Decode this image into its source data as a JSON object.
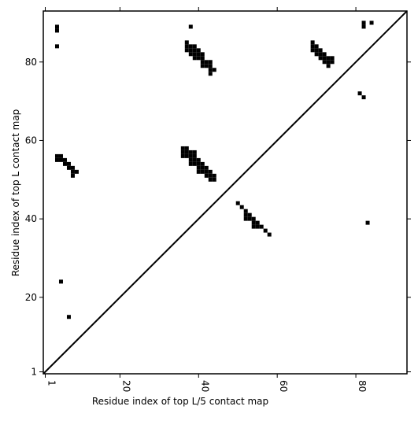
{
  "chart_data": {
    "type": "scatter",
    "marker": "square",
    "x_label": "Residue index of top L/5 contact map",
    "y_label": "Residue index of top L contact map",
    "xlim": [
      0.5,
      93
    ],
    "ylim": [
      0.5,
      93
    ],
    "xticks": [
      1,
      20,
      40,
      60,
      80
    ],
    "yticks": [
      1,
      20,
      40,
      60,
      80
    ],
    "diagonal": true,
    "series": [
      {
        "color": "#000000",
        "x": [
          4,
          4,
          4,
          38,
          37,
          37,
          37,
          38,
          38,
          38,
          39,
          39,
          39,
          39,
          40,
          40,
          40,
          41,
          41,
          41,
          41,
          42,
          42,
          43,
          43,
          43,
          43,
          44,
          69,
          69,
          69,
          70,
          70,
          70,
          71,
          71,
          71,
          72,
          72,
          72,
          73,
          73,
          73,
          74,
          74,
          82,
          82,
          84,
          81,
          82,
          36,
          36,
          36,
          37,
          37,
          37,
          38,
          38,
          38,
          38,
          39,
          39,
          39,
          39,
          40,
          40,
          40,
          40,
          41,
          41,
          41,
          42,
          42,
          42,
          43,
          43,
          43,
          44,
          44,
          4,
          4,
          5,
          5,
          6,
          6,
          7,
          7,
          8,
          8,
          8,
          9,
          5,
          7,
          50,
          51,
          52,
          52,
          52,
          53,
          53,
          54,
          54,
          54,
          55,
          55,
          56,
          57,
          58,
          83
        ],
        "y": [
          88,
          89,
          84,
          89,
          85,
          84,
          83,
          84,
          83,
          82,
          84,
          83,
          82,
          81,
          83,
          82,
          81,
          82,
          81,
          80,
          79,
          80,
          79,
          80,
          79,
          78,
          77,
          78,
          85,
          84,
          83,
          84,
          83,
          82,
          83,
          82,
          81,
          82,
          81,
          80,
          81,
          80,
          79,
          81,
          80,
          90,
          89,
          90,
          72,
          71,
          58,
          57,
          56,
          58,
          57,
          56,
          57,
          56,
          55,
          54,
          57,
          56,
          55,
          54,
          55,
          54,
          53,
          52,
          54,
          53,
          52,
          53,
          52,
          51,
          52,
          51,
          50,
          51,
          50,
          56,
          55,
          56,
          55,
          55,
          54,
          54,
          53,
          53,
          52,
          51,
          52,
          24,
          15,
          44,
          43,
          42,
          41,
          40,
          41,
          40,
          40,
          39,
          38,
          39,
          38,
          38,
          37,
          36,
          39
        ]
      }
    ]
  }
}
